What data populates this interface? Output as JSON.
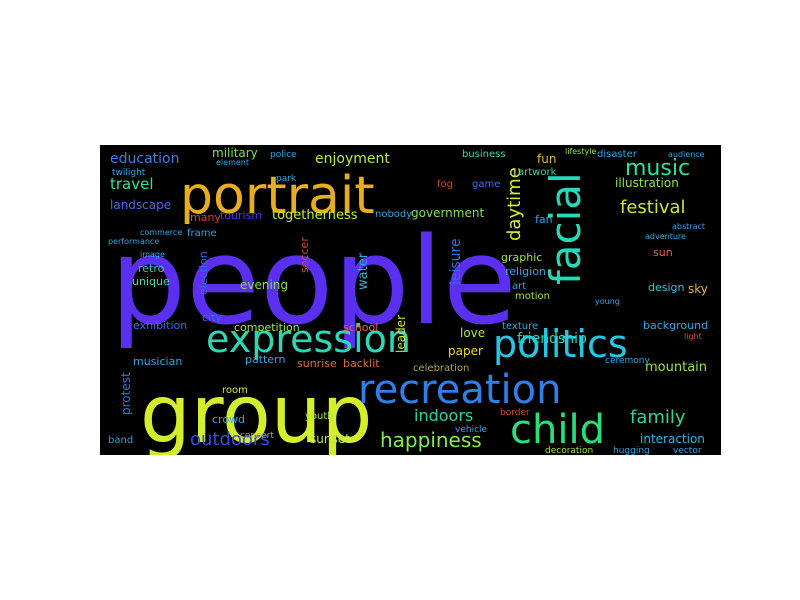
{
  "words": [
    {
      "text": "people",
      "color": "#5b2ff0"
    },
    {
      "text": "group",
      "color": "#d4ee2c"
    },
    {
      "text": "portrait",
      "color": "#e8ad1c"
    },
    {
      "text": "recreation",
      "color": "#2f7fe6"
    },
    {
      "text": "expression",
      "color": "#2bd8b5"
    },
    {
      "text": "politics",
      "color": "#25c5e4"
    },
    {
      "text": "facial",
      "color": "#27d9b8"
    },
    {
      "text": "child",
      "color": "#27e07c"
    },
    {
      "text": "happiness",
      "color": "#83f04a"
    },
    {
      "text": "outdoors",
      "color": "#2f4fe6"
    },
    {
      "text": "family",
      "color": "#2ad59a"
    },
    {
      "text": "music",
      "color": "#2de0a0"
    },
    {
      "text": "festival",
      "color": "#cfe52c"
    },
    {
      "text": "daytime",
      "color": "#d8ec30"
    },
    {
      "text": "indoors",
      "color": "#27d6a6"
    },
    {
      "text": "education",
      "color": "#3a7fe6"
    },
    {
      "text": "travel",
      "color": "#30e3a1"
    },
    {
      "text": "enjoyment",
      "color": "#b6ef34"
    },
    {
      "text": "togetherness",
      "color": "#c8ee30"
    },
    {
      "text": "military",
      "color": "#74e54a"
    },
    {
      "text": "illustration",
      "color": "#8ce44a"
    },
    {
      "text": "landscape",
      "color": "#3f6ee8"
    },
    {
      "text": "leisure",
      "color": "#2f6fe6"
    },
    {
      "text": "friendship",
      "color": "#27d2c0"
    },
    {
      "text": "mountain",
      "color": "#9be437"
    },
    {
      "text": "interaction",
      "color": "#2ab8e0"
    },
    {
      "text": "protest",
      "color": "#2f76e6"
    },
    {
      "text": "sunset",
      "color": "#bcea38"
    },
    {
      "text": "evening",
      "color": "#7ce447"
    },
    {
      "text": "government",
      "color": "#80e04a"
    },
    {
      "text": "water",
      "color": "#2fa8e4"
    },
    {
      "text": "leader",
      "color": "#c6e638"
    },
    {
      "text": "competition",
      "color": "#a4e63f"
    },
    {
      "text": "paper",
      "color": "#e8d82c"
    },
    {
      "text": "love",
      "color": "#b6ea3a"
    },
    {
      "text": "background",
      "color": "#2fa7e2"
    },
    {
      "text": "fun",
      "color": "#e3b82b"
    },
    {
      "text": "fan",
      "color": "#2fa7e2"
    },
    {
      "text": "sky",
      "color": "#e3b82b"
    },
    {
      "text": "design",
      "color": "#2fc7d4"
    },
    {
      "text": "graphic",
      "color": "#9be63d"
    },
    {
      "text": "religion",
      "color": "#2fa7e2"
    },
    {
      "text": "retro",
      "color": "#39c9c2"
    },
    {
      "text": "unique",
      "color": "#3cd6b6"
    },
    {
      "text": "election",
      "color": "#3a66e6"
    },
    {
      "text": "city",
      "color": "#2f6ee6"
    },
    {
      "text": "soccer",
      "color": "#d24a22"
    },
    {
      "text": "school",
      "color": "#e06a2a"
    },
    {
      "text": "exhibition",
      "color": "#2f6fe6"
    },
    {
      "text": "musician",
      "color": "#2fa7e2"
    },
    {
      "text": "pattern",
      "color": "#2fa7e2"
    },
    {
      "text": "sunrise",
      "color": "#e06a2a"
    },
    {
      "text": "backlit",
      "color": "#e06a2a"
    },
    {
      "text": "celebration",
      "color": "#b0a642"
    },
    {
      "text": "texture",
      "color": "#2fa7e2"
    },
    {
      "text": "motion",
      "color": "#a4e63f"
    },
    {
      "text": "art",
      "color": "#2fa7e2"
    },
    {
      "text": "sun",
      "color": "#e06a2a"
    },
    {
      "text": "tourism",
      "color": "#5b2ff0"
    },
    {
      "text": "many",
      "color": "#e03a3a"
    },
    {
      "text": "frame",
      "color": "#2fa7e2"
    },
    {
      "text": "nobody",
      "color": "#2fa7e2"
    },
    {
      "text": "band",
      "color": "#2f9fe6"
    },
    {
      "text": "room",
      "color": "#d4ee2c"
    },
    {
      "text": "concert",
      "color": "#b0a642"
    },
    {
      "text": "crowd",
      "color": "#2fa7e2"
    },
    {
      "text": "youth",
      "color": "#a4e63f"
    },
    {
      "text": "border",
      "color": "#d24a22"
    },
    {
      "text": "vehicle",
      "color": "#2fa7e2"
    },
    {
      "text": "decoration",
      "color": "#a4e63f"
    },
    {
      "text": "hugging",
      "color": "#2fa7e2"
    },
    {
      "text": "vector",
      "color": "#2fa7e2"
    },
    {
      "text": "ceremony",
      "color": "#2fa7e2"
    },
    {
      "text": "business",
      "color": "#3cd6b6"
    },
    {
      "text": "artwork",
      "color": "#2fd6a6"
    },
    {
      "text": "disaster",
      "color": "#2fa7e2"
    },
    {
      "text": "audience",
      "color": "#2fa7e2"
    },
    {
      "text": "lifestyle",
      "color": "#9be63d"
    },
    {
      "text": "fog",
      "color": "#d24a22"
    },
    {
      "text": "game",
      "color": "#2f76e6"
    },
    {
      "text": "police",
      "color": "#2fa7e2"
    },
    {
      "text": "twilight",
      "color": "#2fa7e2"
    },
    {
      "text": "commerce",
      "color": "#2fa7e2"
    },
    {
      "text": "park",
      "color": "#2fa7e2"
    },
    {
      "text": "element",
      "color": "#2fa7e2"
    },
    {
      "text": "performance",
      "color": "#2fa7e2"
    },
    {
      "text": "adventure",
      "color": "#2fa7e2"
    },
    {
      "text": "abstract",
      "color": "#2fa7e2"
    },
    {
      "text": "image",
      "color": "#2fa7e2"
    },
    {
      "text": "young",
      "color": "#2fa7e2"
    },
    {
      "text": "light",
      "color": "#d24a22"
    }
  ]
}
